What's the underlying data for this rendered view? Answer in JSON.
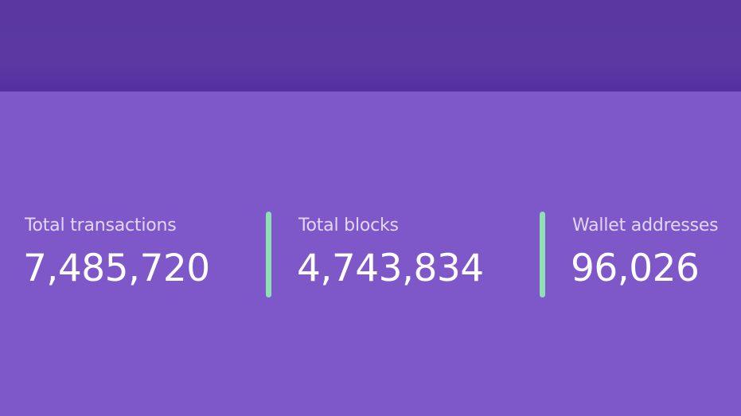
{
  "stats": [
    {
      "label": "Total transactions",
      "value": "7,485,720"
    },
    {
      "label": "Total blocks",
      "value": "4,743,834"
    },
    {
      "label": "Wallet addresses",
      "value": "96,026"
    }
  ],
  "colors": {
    "header": "#5a37a1",
    "background": "#7e58c9",
    "divider": "#8ee0b4",
    "label": "#e2d6f7",
    "value": "#ffffff"
  }
}
